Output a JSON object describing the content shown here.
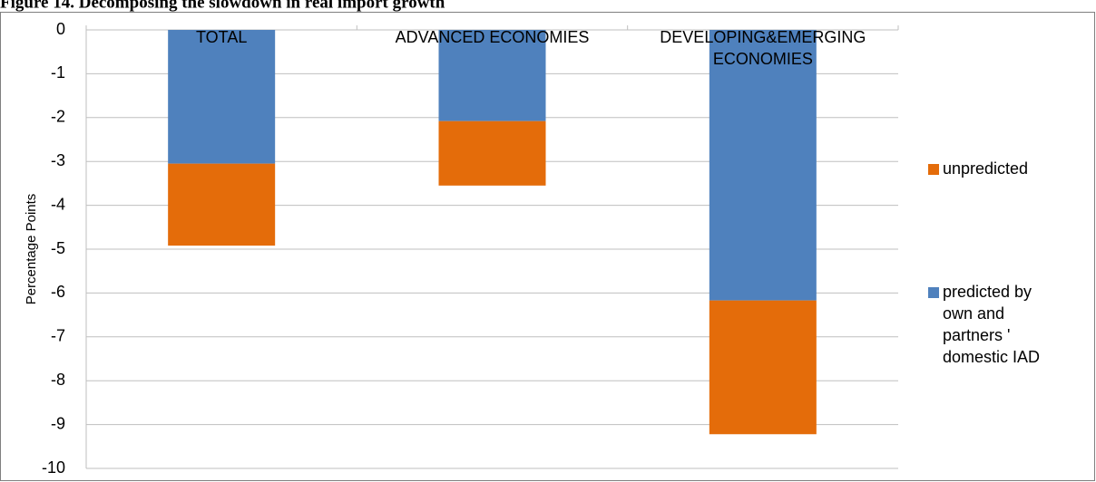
{
  "chart_data": {
    "type": "bar",
    "stacked": true,
    "title": "Figure 14. Decomposing the slowdown in real import growth",
    "y_label": "Percentage Points",
    "categories": [
      "TOTAL",
      "ADVANCED ECONOMIES",
      "DEVELOPING&EMERGING ECONOMIES"
    ],
    "series": [
      {
        "name": "predicted by own and partners ' domestic IAD",
        "color": "#4f81bd",
        "values": [
          -3.05,
          -2.08,
          -6.17
        ]
      },
      {
        "name": "unpredicted",
        "color": "#e46c0a",
        "values": [
          -1.87,
          -1.47,
          -3.05
        ]
      }
    ],
    "ylim": [
      -10,
      0
    ],
    "yticks": [
      0,
      -1,
      -2,
      -3,
      -4,
      -5,
      -6,
      -7,
      -8,
      -9,
      -10
    ],
    "grid": true,
    "legend": "right"
  }
}
